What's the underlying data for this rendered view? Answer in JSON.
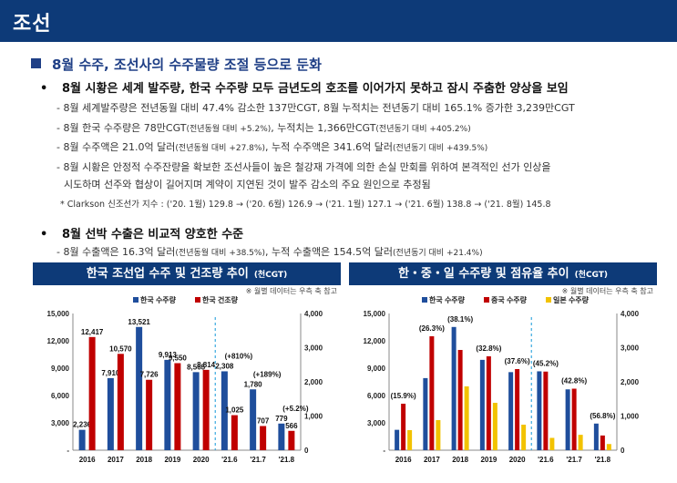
{
  "page": {
    "title": "조선",
    "section": "8월 수주, 조선사의 수주물량 조절 등으로 둔화",
    "bullet1": "8월 시황은 세계 발주량, 한국 수주량 모두 금년도의 호조를 이어가지 못하고 잠시 주춤한 양상을 보임",
    "b1_line1": "- 8월 세계발주량은 전년동월 대비 47.4% 감소한 137만CGT, 8월 누적치는 전년동기 대비 165.1% 증가한 3,239만CGT",
    "b1_line2_main": "- 8월 한국 수주량은 78만CGT",
    "b1_line2_s1": "(전년동월 대비 +5.2%)",
    "b1_line2_mid": ", 누적치는 1,366만CGT",
    "b1_line2_s2": "(전년동기 대비 +405.2%)",
    "b1_line3_main": "- 8월 수주액은 21.0억 달러",
    "b1_line3_s1": "(전년동월 대비 +27.8%)",
    "b1_line3_mid": ", 누적 수주액은 341.6억 달러",
    "b1_line3_s2": "(전년동기 대비 +439.5%)",
    "b1_line4": "- 8월 시황은 안정적 수주잔량을 확보한 조선사들이 높은 철강재 가격에 의한 손실 만회를 위하여 본격적인 선가 인상을",
    "b1_line5": "시도하며 선주와 협상이 길어지며 계약이 지연된 것이 발주 감소의 주요 원인으로 추정됨",
    "b1_note": "* Clarkson 신조선가 지수 : ('20. 1월) 129.8 → ('20. 6월) 126.9 → ('21. 1월) 127.1 → ('21. 6월) 138.8 → ('21. 8월) 145.8",
    "bullet2": "8월 선박 수출은 비교적 양호한 수준",
    "b2_line1_main": "- 8월 수출액은 16.3억 달러",
    "b2_line1_s1": "(전년동월 대비 +38.5%)",
    "b2_line1_mid": ", 누적 수출액은 154.5억 달러",
    "b2_line1_s2": "(전년동기 대비 +21.4%)",
    "dot": "•"
  },
  "chart_data": [
    {
      "type": "bar",
      "title": "한국 조선업 수주 및 건조량 추이",
      "unit": "(천CGT)",
      "note": "※ 월별 데이터는 우측 축 참고",
      "categories": [
        "2016",
        "2017",
        "2018",
        "2019",
        "2020",
        "'21.6",
        "'21.7",
        "'21.8"
      ],
      "left_axis": {
        "ticks": [
          "15,000",
          "12,000",
          "9,000",
          "6,000",
          "3,000",
          "-"
        ],
        "ylim": [
          0,
          15000
        ]
      },
      "right_axis": {
        "ticks": [
          "4,000",
          "3,000",
          "2,000",
          "1,000",
          "0"
        ],
        "ylim": [
          0,
          4000
        ]
      },
      "series": [
        {
          "name": "한국 수주량",
          "color": "#1f4e9c",
          "values": [
            2236,
            7910,
            13521,
            9913,
            8565,
            2308,
            1780,
            779
          ],
          "labels": [
            "2,236",
            "7,910",
            "13,521",
            "9,913",
            "8,565",
            "2,308",
            "1,780",
            "779"
          ]
        },
        {
          "name": "한국 건조량",
          "color": "#c00000",
          "values": [
            12417,
            10570,
            7726,
            9550,
            8814,
            1025,
            707,
            566
          ],
          "labels": [
            "12,417",
            "10,570",
            "7,726",
            "9,550",
            "8,814",
            "1,025",
            "707",
            "566"
          ]
        }
      ],
      "annotations": [
        {
          "text": "(+810%)",
          "category": "'21.6"
        },
        {
          "text": "(+189%)",
          "category": "'21.7"
        },
        {
          "text": "(+5.2%)",
          "category": "'21.8"
        }
      ]
    },
    {
      "type": "bar",
      "title": "한・중・일 수주량 및 점유율 추이",
      "unit": "(천CGT)",
      "note": "※ 월별 데이터는 우측 축 참고",
      "categories": [
        "2016",
        "2017",
        "2018",
        "2019",
        "2020",
        "'21.6",
        "'21.7",
        "'21.8"
      ],
      "left_axis": {
        "ticks": [
          "15,000",
          "12,000",
          "9,000",
          "6,000",
          "3,000",
          "-"
        ],
        "ylim": [
          0,
          15000
        ]
      },
      "right_axis": {
        "ticks": [
          "4,000",
          "3,000",
          "2,000",
          "1,000",
          "0"
        ],
        "ylim": [
          0,
          4000
        ]
      },
      "series": [
        {
          "name": "한국 수주량",
          "color": "#1f4e9c",
          "values": [
            2236,
            7910,
            13521,
            9913,
            8565,
            2308,
            1780,
            779
          ]
        },
        {
          "name": "중국 수주량",
          "color": "#c00000",
          "values": [
            5100,
            12500,
            11000,
            10300,
            8900,
            2300,
            1800,
            430
          ]
        },
        {
          "name": "일본 수주량",
          "color": "#f2c200",
          "values": [
            2200,
            3300,
            7000,
            5200,
            2800,
            360,
            450,
            180
          ]
        }
      ],
      "annotations": [
        {
          "text": "(15.9%)",
          "category": "2016"
        },
        {
          "text": "(26.3%)",
          "category": "2017"
        },
        {
          "text": "(38.1%)",
          "category": "2018"
        },
        {
          "text": "(32.8%)",
          "category": "2019"
        },
        {
          "text": "(37.6%)",
          "category": "2020"
        },
        {
          "text": "(45.2%)",
          "category": "'21.6"
        },
        {
          "text": "(42.8%)",
          "category": "'21.7"
        },
        {
          "text": "(56.8%)",
          "category": "'21.8"
        }
      ]
    }
  ]
}
